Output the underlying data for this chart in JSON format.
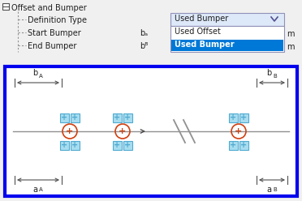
{
  "bg_color": "#f0f0f0",
  "title_text": "Offset and Bumper",
  "row1_label": "Definition Type",
  "row2_label": "Start Bumper",
  "row3_label": "End Bumper",
  "dropdown_item1": "Used Bumper",
  "dropdown_item2": "Used Offset",
  "dropdown_item3": "Used Bumper",
  "dropdown_selected_color": "#0078d7",
  "dropdown_header_color": "#dde8f8",
  "dropdown_border_color": "#9090b8",
  "dropdown_bg": "#ffffff",
  "sketch_border_color": "#0000ee",
  "sketch_bg": "#ffffff",
  "line_color": "#909090",
  "box_fill": "#a8ddf0",
  "box_border": "#50aad0",
  "circle_color": "#d04010",
  "arrow_color": "#505050",
  "dim_color": "#505050",
  "break_color": "#909090",
  "tree_color": "#909090",
  "minus_icon_color": "#505050",
  "text_color": "#202020"
}
